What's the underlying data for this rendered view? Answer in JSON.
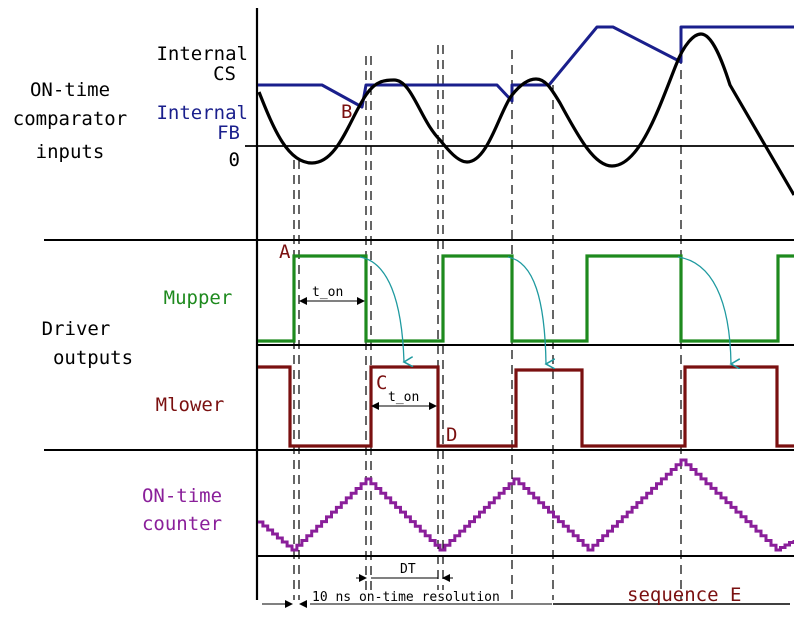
{
  "colors": {
    "black": "#000000",
    "navy": "#1a1f8c",
    "green": "#1e8a1e",
    "maroon": "#7a1010",
    "purple": "#8a1f9a",
    "teal": "#1f9aa0"
  },
  "labels": {
    "section_comparator": [
      "ON-time",
      "comparator",
      "inputs"
    ],
    "internal_cs": [
      "Internal",
      "CS"
    ],
    "internal_fb": [
      "Internal",
      "FB"
    ],
    "zero": "0",
    "section_driver": [
      "Driver",
      "outputs"
    ],
    "mupper": "Mupper",
    "mlower": "Mlower",
    "counter": [
      "ON-time",
      "counter"
    ],
    "point_a": "A",
    "point_b": "B",
    "point_c": "C",
    "point_d": "D",
    "t_on_upper": "t_on",
    "t_on_lower": "t_on",
    "dt": "DT",
    "resolution": "10 ns on-time resolution",
    "sequence": "sequence E"
  }
}
